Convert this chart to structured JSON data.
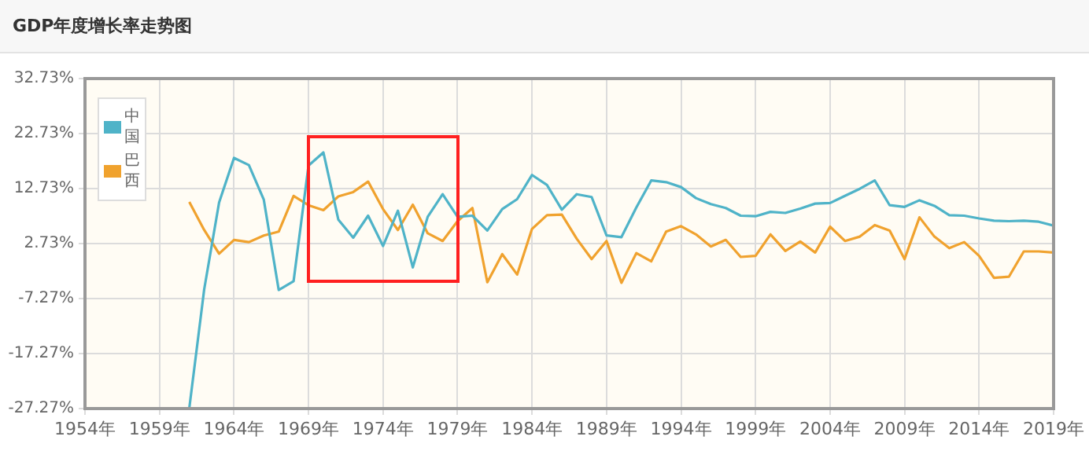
{
  "chart_data": {
    "type": "line",
    "title": "GDP年度增长率走势图",
    "x": [
      1961,
      1962,
      1963,
      1964,
      1965,
      1966,
      1967,
      1968,
      1969,
      1970,
      1971,
      1972,
      1973,
      1974,
      1975,
      1976,
      1977,
      1978,
      1979,
      1980,
      1981,
      1982,
      1983,
      1984,
      1985,
      1986,
      1987,
      1988,
      1989,
      1990,
      1991,
      1992,
      1993,
      1994,
      1995,
      1996,
      1997,
      1998,
      1999,
      2000,
      2001,
      2002,
      2003,
      2004,
      2005,
      2006,
      2007,
      2008,
      2009,
      2010,
      2011,
      2012,
      2013,
      2014,
      2015,
      2016,
      2017,
      2018,
      2019
    ],
    "series": [
      {
        "name": "中国",
        "color": "#4fb3c8",
        "values": [
          -27.2,
          -5.6,
          10.2,
          18.3,
          17.0,
          10.7,
          -5.7,
          -4.1,
          16.9,
          19.3,
          7.1,
          3.8,
          7.8,
          2.3,
          8.7,
          -1.6,
          7.6,
          11.7,
          7.6,
          7.8,
          5.1,
          9.0,
          10.8,
          15.2,
          13.4,
          8.9,
          11.7,
          11.2,
          4.2,
          3.9,
          9.3,
          14.2,
          13.9,
          13.0,
          11.0,
          9.9,
          9.2,
          7.8,
          7.7,
          8.5,
          8.3,
          9.1,
          10.0,
          10.1,
          11.4,
          12.7,
          14.2,
          9.7,
          9.4,
          10.6,
          9.6,
          7.9,
          7.8,
          7.3,
          6.9,
          6.8,
          6.9,
          6.7,
          6.0
        ]
      },
      {
        "name": "巴西",
        "color": "#f0a22e",
        "values": [
          10.3,
          5.2,
          0.9,
          3.4,
          3.0,
          4.2,
          4.9,
          11.4,
          9.7,
          8.8,
          11.3,
          12.1,
          14.0,
          9.0,
          5.2,
          9.8,
          4.6,
          3.2,
          6.8,
          9.2,
          -4.3,
          0.8,
          -2.9,
          5.4,
          7.9,
          8.0,
          3.6,
          -0.1,
          3.2,
          -4.4,
          1.0,
          -0.5,
          4.9,
          5.9,
          4.4,
          2.2,
          3.4,
          0.3,
          0.5,
          4.4,
          1.4,
          3.1,
          1.1,
          5.8,
          3.2,
          4.0,
          6.1,
          5.1,
          -0.1,
          7.5,
          4.0,
          1.9,
          3.0,
          0.5,
          -3.5,
          -3.3,
          1.3,
          1.3,
          1.1
        ]
      }
    ],
    "xlim": [
      1954,
      2019
    ],
    "xticks": [
      {
        "value": 1954,
        "label": "1954年"
      },
      {
        "value": 1959,
        "label": "1959年"
      },
      {
        "value": 1964,
        "label": "1964年"
      },
      {
        "value": 1969,
        "label": "1969年"
      },
      {
        "value": 1974,
        "label": "1974年"
      },
      {
        "value": 1979,
        "label": "1979年"
      },
      {
        "value": 1984,
        "label": "1984年"
      },
      {
        "value": 1989,
        "label": "1989年"
      },
      {
        "value": 1994,
        "label": "1994年"
      },
      {
        "value": 1999,
        "label": "1999年"
      },
      {
        "value": 2004,
        "label": "2004年"
      },
      {
        "value": 2009,
        "label": "2009年"
      },
      {
        "value": 2014,
        "label": "2014年"
      },
      {
        "value": 2019,
        "label": "2019年"
      }
    ],
    "ylim": [
      -27.27,
      32.73
    ],
    "yticks": [
      {
        "value": -27.27,
        "label": "-27.27%"
      },
      {
        "value": -17.27,
        "label": "-17.27%"
      },
      {
        "value": -7.27,
        "label": "-7.27%"
      },
      {
        "value": 2.73,
        "label": "2.73%"
      },
      {
        "value": 12.73,
        "label": "12.73%"
      },
      {
        "value": 22.73,
        "label": "22.73%"
      },
      {
        "value": 32.73,
        "label": "32.73%"
      }
    ],
    "grid": true,
    "legend": "top left",
    "marker": "none",
    "line_style": "solid"
  }
}
